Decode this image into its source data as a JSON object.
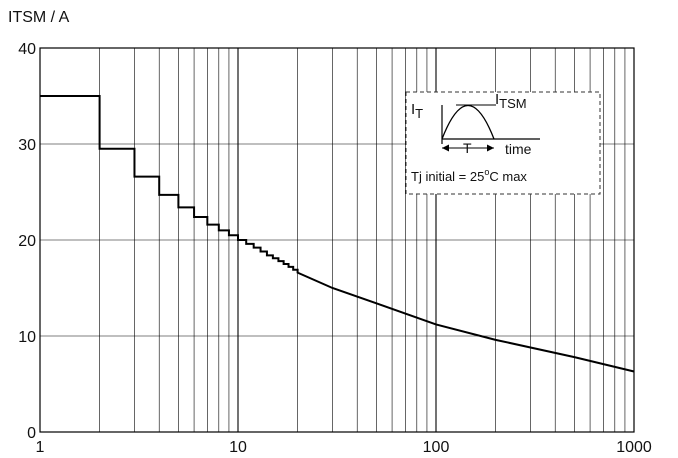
{
  "chart_data": {
    "type": "line",
    "title": "",
    "ylabel": "ITSM / A",
    "xlabel": "",
    "x_scale": "log",
    "xlim": [
      1,
      1000
    ],
    "ylim": [
      0,
      40
    ],
    "grid": true,
    "x_ticks": [
      "1",
      "10",
      "100",
      "1000"
    ],
    "y_ticks": [
      "0",
      "10",
      "20",
      "30",
      "40"
    ],
    "line_color": "#000000",
    "series": [
      {
        "x": [
          1,
          2,
          2,
          3,
          3,
          4,
          4,
          5,
          5,
          6,
          6,
          7,
          7,
          8,
          8,
          9,
          9,
          10,
          10,
          11,
          11,
          12,
          12,
          13,
          13,
          14,
          14,
          15,
          15,
          16,
          16,
          17,
          17,
          18,
          18,
          19,
          19,
          20,
          20,
          30,
          50,
          100,
          200,
          500,
          1000
        ],
        "y": [
          35,
          35,
          29.5,
          29.5,
          26.6,
          26.6,
          24.7,
          24.7,
          23.4,
          23.4,
          22.4,
          22.4,
          21.6,
          21.6,
          21.0,
          21.0,
          20.5,
          20.5,
          20.0,
          20.0,
          19.6,
          19.6,
          19.2,
          19.2,
          18.8,
          18.8,
          18.4,
          18.4,
          18.1,
          18.1,
          17.8,
          17.8,
          17.5,
          17.5,
          17.2,
          17.2,
          16.9,
          16.9,
          16.6,
          15.0,
          13.4,
          11.2,
          9.6,
          7.8,
          6.3
        ]
      }
    ],
    "inset": {
      "current_label": "I",
      "current_sub": "T",
      "peak_label": "I",
      "peak_sub": "TSM",
      "period_label": "T",
      "time_label": "time",
      "condition_prefix": "Tj initial = 25",
      "condition_sup": "o",
      "condition_suffix": "C max"
    }
  }
}
